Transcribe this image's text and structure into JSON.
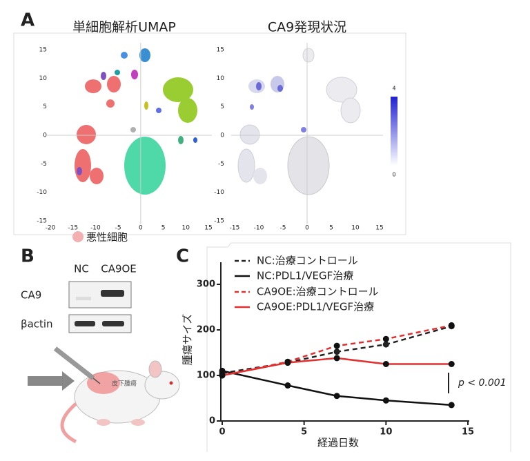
{
  "panel_labels": [
    "A",
    "B",
    "C"
  ],
  "panel_a": {
    "legend": "悪性細胞"
  },
  "panel_b": {
    "lanes": [
      "NC",
      "CA9OE"
    ],
    "rows": [
      "CA9",
      "βactin"
    ],
    "tumor_label": "皮下腫瘍"
  },
  "chart_data": [
    {
      "type": "scatter",
      "title": "単細胞解析UMAP",
      "xlim": [
        -20,
        15
      ],
      "xticks": [
        -20,
        -15,
        -10,
        -5,
        0,
        5,
        10,
        15
      ],
      "ylim": [
        -15,
        15
      ],
      "yticks": [
        15,
        10,
        5,
        0,
        -5,
        -10,
        -15
      ]
    },
    {
      "type": "scatter",
      "title": "CA9発現状況",
      "xlim": [
        -15,
        15
      ],
      "xticks": [
        -15,
        -10,
        -5,
        0,
        5,
        10,
        15
      ],
      "ylim": [
        -15,
        15
      ],
      "yticks": [
        15,
        10,
        5,
        0,
        -5,
        -10,
        -15
      ],
      "colorbar": {
        "lim": [
          0,
          4
        ],
        "ticks": [
          4,
          0
        ]
      }
    },
    {
      "type": "line",
      "xlabel": "経過日数",
      "ylabel": "腫瘍サイズ",
      "x": [
        0,
        4,
        7,
        10,
        14
      ],
      "xlim": [
        0,
        15
      ],
      "xticks": [
        0,
        5,
        10,
        15
      ],
      "ylim": [
        0,
        350
      ],
      "yticks": [
        0,
        100,
        200,
        300
      ],
      "annotation": "p < 0.001",
      "series": [
        {
          "name": "NC:治療コントロール",
          "color": "#222222",
          "dashed": true,
          "values": [
            105,
            128,
            152,
            168,
            208
          ]
        },
        {
          "name": "NC:PDL1/VEGF治療",
          "color": "#111111",
          "dashed": false,
          "values": [
            110,
            78,
            55,
            45,
            35
          ]
        },
        {
          "name": "CA9OE:治療コントロール",
          "color": "#e03030",
          "dashed": true,
          "values": [
            100,
            130,
            165,
            180,
            210
          ]
        },
        {
          "name": "CA9OE:PDL1/VEGF治療",
          "color": "#e03030",
          "dashed": false,
          "values": [
            100,
            128,
            138,
            125,
            125
          ]
        }
      ]
    }
  ]
}
